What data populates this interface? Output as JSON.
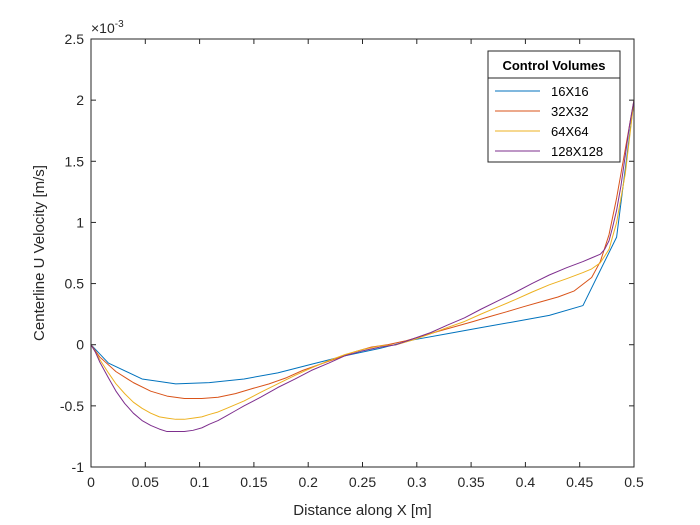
{
  "chart_data": {
    "type": "line",
    "title": "",
    "xlabel": "Distance along X [m]",
    "ylabel": "Centerline U Velocity [m/s]",
    "xlim": [
      0,
      0.5
    ],
    "ylim": [
      -1,
      2.5
    ],
    "y_exponent_label": "×10",
    "y_exponent_power": "-3",
    "x_ticks": [
      0,
      0.05,
      0.1,
      0.15,
      0.2,
      0.25,
      0.3,
      0.35,
      0.4,
      0.45,
      0.5
    ],
    "x_tick_labels": [
      "0",
      "0.05",
      "0.1",
      "0.15",
      "0.2",
      "0.25",
      "0.3",
      "0.35",
      "0.4",
      "0.45",
      "0.5"
    ],
    "y_ticks": [
      -1,
      -0.5,
      0,
      0.5,
      1,
      1.5,
      2,
      2.5
    ],
    "y_tick_labels": [
      "-1",
      "-0.5",
      "0",
      "0.5",
      "1",
      "1.5",
      "2",
      "2.5"
    ],
    "grid": false,
    "legend": {
      "title": "Control Volumes",
      "position": "top-right"
    },
    "series": [
      {
        "name": "16X16",
        "color": "#0072BD",
        "x": [
          0,
          0.016,
          0.047,
          0.078,
          0.109,
          0.141,
          0.172,
          0.203,
          0.234,
          0.266,
          0.297,
          0.328,
          0.359,
          0.391,
          0.422,
          0.453,
          0.484,
          0.5
        ],
        "y": [
          0,
          -0.15,
          -0.28,
          -0.32,
          -0.31,
          -0.28,
          -0.23,
          -0.16,
          -0.09,
          -0.03,
          0.04,
          0.09,
          0.14,
          0.19,
          0.24,
          0.32,
          0.88,
          2.0
        ]
      },
      {
        "name": "32X32",
        "color": "#D95319",
        "x": [
          0,
          0.008,
          0.023,
          0.039,
          0.055,
          0.07,
          0.086,
          0.102,
          0.117,
          0.133,
          0.148,
          0.164,
          0.18,
          0.195,
          0.211,
          0.227,
          0.242,
          0.258,
          0.273,
          0.289,
          0.305,
          0.32,
          0.336,
          0.352,
          0.367,
          0.383,
          0.398,
          0.414,
          0.43,
          0.445,
          0.461,
          0.469,
          0.477,
          0.484,
          0.492,
          0.5
        ],
        "y": [
          0,
          -0.1,
          -0.22,
          -0.31,
          -0.38,
          -0.42,
          -0.44,
          -0.44,
          -0.43,
          -0.4,
          -0.36,
          -0.32,
          -0.27,
          -0.21,
          -0.16,
          -0.11,
          -0.06,
          -0.02,
          0.0,
          0.03,
          0.07,
          0.11,
          0.15,
          0.19,
          0.23,
          0.27,
          0.31,
          0.35,
          0.39,
          0.44,
          0.55,
          0.68,
          0.9,
          1.2,
          1.6,
          2.0
        ]
      },
      {
        "name": "64X64",
        "color": "#EDB120",
        "x": [
          0,
          0.008,
          0.016,
          0.023,
          0.031,
          0.039,
          0.047,
          0.055,
          0.063,
          0.07,
          0.078,
          0.086,
          0.094,
          0.102,
          0.109,
          0.117,
          0.125,
          0.141,
          0.156,
          0.172,
          0.188,
          0.203,
          0.219,
          0.234,
          0.25,
          0.266,
          0.281,
          0.297,
          0.313,
          0.328,
          0.344,
          0.359,
          0.375,
          0.391,
          0.406,
          0.422,
          0.438,
          0.453,
          0.461,
          0.469,
          0.477,
          0.484,
          0.492,
          0.5
        ],
        "y": [
          0,
          -0.12,
          -0.23,
          -0.32,
          -0.4,
          -0.47,
          -0.52,
          -0.56,
          -0.59,
          -0.6,
          -0.61,
          -0.61,
          -0.6,
          -0.59,
          -0.57,
          -0.55,
          -0.52,
          -0.46,
          -0.39,
          -0.32,
          -0.25,
          -0.19,
          -0.13,
          -0.08,
          -0.04,
          -0.01,
          0.0,
          0.04,
          0.09,
          0.14,
          0.19,
          0.25,
          0.31,
          0.37,
          0.43,
          0.49,
          0.54,
          0.59,
          0.62,
          0.67,
          0.78,
          1.0,
          1.4,
          2.0
        ]
      },
      {
        "name": "128X128",
        "color": "#7E2F8E",
        "x": [
          0,
          0.004,
          0.008,
          0.016,
          0.023,
          0.031,
          0.039,
          0.047,
          0.055,
          0.063,
          0.07,
          0.078,
          0.086,
          0.094,
          0.102,
          0.109,
          0.117,
          0.125,
          0.133,
          0.141,
          0.156,
          0.172,
          0.188,
          0.203,
          0.219,
          0.234,
          0.25,
          0.266,
          0.281,
          0.297,
          0.313,
          0.328,
          0.344,
          0.359,
          0.375,
          0.391,
          0.406,
          0.422,
          0.438,
          0.453,
          0.461,
          0.469,
          0.473,
          0.477,
          0.48,
          0.484,
          0.488,
          0.492,
          0.496,
          0.5
        ],
        "y": [
          0,
          -0.06,
          -0.14,
          -0.27,
          -0.38,
          -0.48,
          -0.56,
          -0.62,
          -0.66,
          -0.69,
          -0.71,
          -0.71,
          -0.71,
          -0.7,
          -0.68,
          -0.65,
          -0.62,
          -0.58,
          -0.54,
          -0.5,
          -0.43,
          -0.35,
          -0.28,
          -0.21,
          -0.15,
          -0.09,
          -0.05,
          -0.02,
          0.0,
          0.05,
          0.1,
          0.16,
          0.22,
          0.29,
          0.36,
          0.43,
          0.5,
          0.57,
          0.63,
          0.68,
          0.71,
          0.74,
          0.78,
          0.85,
          0.95,
          1.1,
          1.3,
          1.55,
          1.8,
          2.0
        ]
      }
    ]
  }
}
